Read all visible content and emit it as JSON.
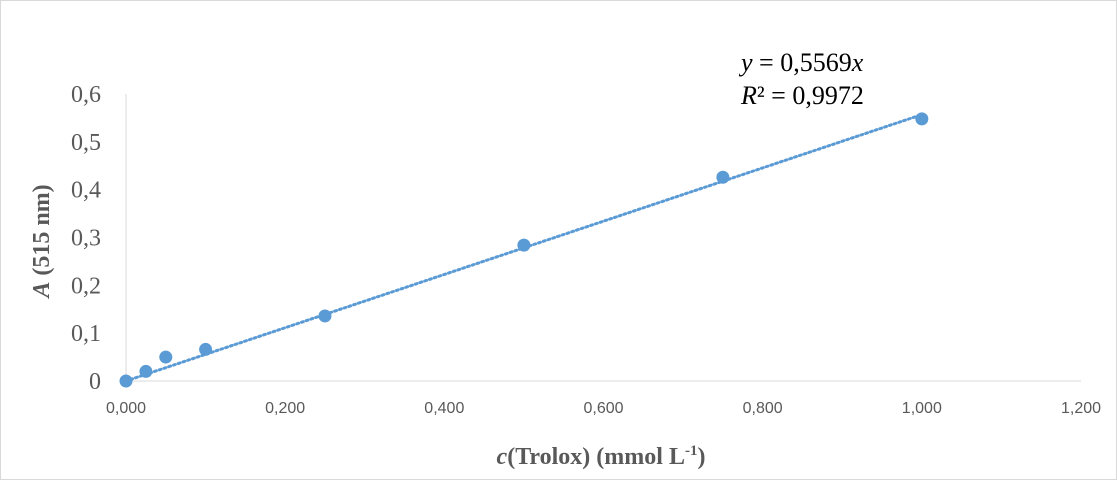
{
  "chart_data": {
    "type": "scatter",
    "xlabel_italic": "c",
    "xlabel_main": "(Trolox) (mmol L",
    "xlabel_sup": "-1",
    "xlabel_end": ")",
    "ylabel_italic": "A",
    "ylabel_main": " (515 nm)",
    "xlim": [
      0,
      1.2
    ],
    "ylim": [
      0,
      0.6
    ],
    "x_ticks": [
      0,
      0.2,
      0.4,
      0.6,
      0.8,
      1.0,
      1.2
    ],
    "x_tick_labels": [
      "0,000",
      "0,200",
      "0,400",
      "0,600",
      "0,800",
      "1,000",
      "1,200"
    ],
    "y_ticks": [
      0,
      0.1,
      0.2,
      0.3,
      0.4,
      0.5,
      0.6
    ],
    "y_tick_labels": [
      "0",
      "0,1",
      "0,2",
      "0,3",
      "0,4",
      "0,5",
      "0,6"
    ],
    "grid": false,
    "legend": "none",
    "series": [
      {
        "color": "#5b9bd5",
        "points": [
          {
            "x": 0.0,
            "y": 0.0
          },
          {
            "x": 0.025,
            "y": 0.02
          },
          {
            "x": 0.05,
            "y": 0.05
          },
          {
            "x": 0.1,
            "y": 0.066
          },
          {
            "x": 0.25,
            "y": 0.136
          },
          {
            "x": 0.5,
            "y": 0.284
          },
          {
            "x": 0.75,
            "y": 0.426
          },
          {
            "x": 1.0,
            "y": 0.548
          }
        ]
      }
    ],
    "trendline": {
      "type": "linear",
      "style": "dotted",
      "slope": 0.5569,
      "intercept": 0,
      "x_range": [
        0,
        1.0
      ],
      "equation_text": {
        "y_italic": "y",
        "y_rest": " = 0,5569",
        "x_italic": "x",
        "r_italic": "R",
        "r_rest": "² = 0,9972"
      }
    }
  }
}
